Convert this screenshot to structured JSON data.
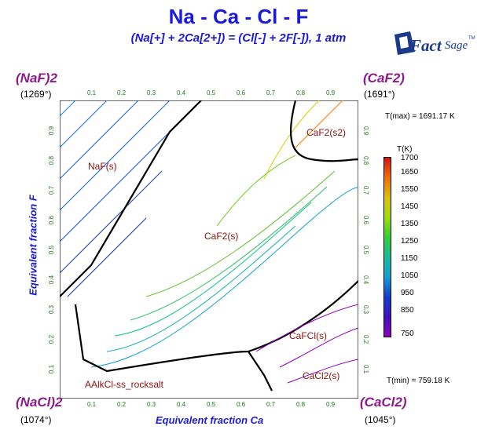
{
  "title": "Na - Ca - Cl - F",
  "subtitle": "(Na[+] + 2Ca[2+]) = (Cl[-] + 2F[-]),  1 atm",
  "logo": {
    "text_main": "Fact",
    "text_sage": "Sage",
    "tm": "TM"
  },
  "corners": {
    "top_left": {
      "label": "(NaF)2",
      "temp": "(1269°)"
    },
    "top_right": {
      "label": "(CaF2)",
      "temp": "(1691°)"
    },
    "bottom_left": {
      "label": "(NaCl)2",
      "temp": "(1074°)"
    },
    "bottom_right": {
      "label": "(CaCl2)",
      "temp": "(1045°)"
    }
  },
  "axes": {
    "x_label": "Equivalent fraction Ca",
    "y_label": "Equivalent fraction F",
    "ticks": [
      "0.1",
      "0.2",
      "0.3",
      "0.4",
      "0.5",
      "0.6",
      "0.7",
      "0.8",
      "0.9"
    ]
  },
  "info": {
    "tmax": "T(max) = 1691.17 K",
    "tmin": "T(min) = 759.18 K"
  },
  "colorbar": {
    "title": "T(K)",
    "labels": [
      "1700",
      "1650",
      "1550",
      "1450",
      "1350",
      "1250",
      "1150",
      "1050",
      "950",
      "850",
      "750"
    ],
    "colors": [
      "#d91010",
      "#f07000",
      "#e0c000",
      "#a0e000",
      "#30d030",
      "#10c0a0",
      "#10a0d0",
      "#1040d0",
      "#4010c0",
      "#9000c0"
    ]
  },
  "phases": {
    "naf": "NaF(s)",
    "caf2": "CaF2(s)",
    "caf2_s2": "CaF2(s2)",
    "cafcl": "CaFCl(s)",
    "cacl2": "CaCl2(s)",
    "alkcl": "AAlkCl-ss_rocksalt"
  }
}
